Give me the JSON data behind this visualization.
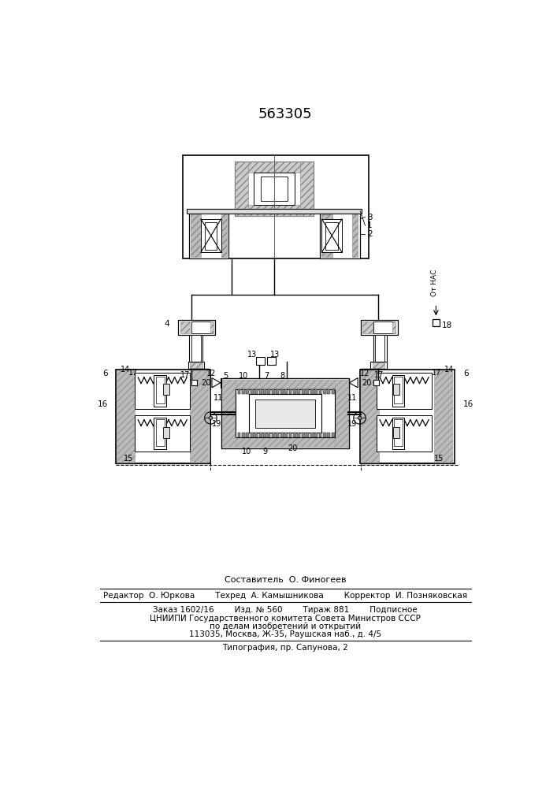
{
  "patent_number": "563305",
  "bg_color": "#ffffff",
  "line_color": "#000000",
  "footer_lines": [
    "Составитель  О. Финогеев",
    "Редактор  О. Юркова        Техред  А. Камышникова        Корректор  И. Позняковская",
    "Заказ 1602/16        Изд. № 560        Тираж 881        Подписное",
    "ЦНИИПИ Государственного комитета Совета Министров СССР",
    "по делам изобретений и открытий",
    "113035, Москва, Ж-35, Раушская наб., д. 4/5",
    "Типография, пр. Сапунова, 2"
  ]
}
